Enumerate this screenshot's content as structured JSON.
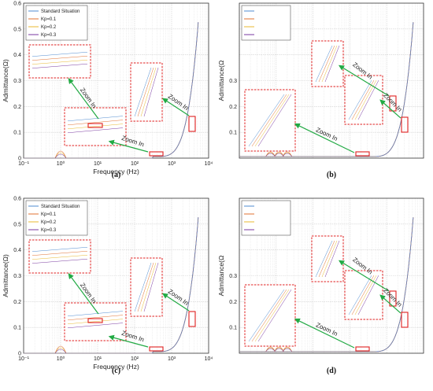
{
  "colors": {
    "series": [
      "#4f8bd0",
      "#e07030",
      "#e8b830",
      "#7a3aa0"
    ],
    "zoom_box": "#e02020",
    "arrow": "#22aa44",
    "grid": "#cfcfcf"
  },
  "chart_data": [
    {
      "type": "line",
      "panel_label": "(a)",
      "xlabel": "Frequency (Hz)",
      "ylabel": "Admittance(Ω)",
      "xscale": "log",
      "xlim": [
        0.1,
        10000
      ],
      "ylim": [
        0,
        0.6
      ],
      "xtick_labels": [
        "10⁻¹",
        "10⁰",
        "10¹",
        "10²",
        "10³",
        "10⁴"
      ],
      "ytick_labels": [
        "0",
        "0.1",
        "0.2",
        "0.3",
        "0.4",
        "0.5",
        "0.6"
      ],
      "legend": [
        "Standard Situation",
        "Kp=0.1",
        "Kp=0.2",
        "Kp=0.3"
      ],
      "legend_placement": "top-left",
      "grid": true,
      "annotations": [
        "Zoom In",
        "Zoom In",
        "Zoom In"
      ]
    },
    {
      "type": "line",
      "panel_label": "(b)",
      "xlabel": "",
      "ylabel": "Admittance(Ω",
      "xscale": "log",
      "ylim": [
        0,
        0.6
      ],
      "ytick_labels": [
        "0.1",
        "0.2",
        "0.3"
      ],
      "legend": [
        "",
        "",
        "",
        ""
      ],
      "legend_placement": "top-left",
      "grid": true,
      "annotations": [
        "Zoom In",
        "Zoom In",
        "Zoom In"
      ]
    },
    {
      "type": "line",
      "panel_label": "(c)",
      "xlabel": "Frequency (Hz)",
      "ylabel": "Admittance(Ω)",
      "xscale": "log",
      "xlim": [
        0.1,
        10000
      ],
      "ylim": [
        0,
        0.6
      ],
      "xtick_labels": [
        "10⁻¹",
        "10⁰",
        "10¹",
        "10²",
        "10³",
        "10⁴"
      ],
      "ytick_labels": [
        "0",
        "0.1",
        "0.2",
        "0.3",
        "0.4",
        "0.5",
        "0.6"
      ],
      "legend": [
        "Standard Situation",
        "Kp=0.1",
        "Kp=0.2",
        "Kp=0.3"
      ],
      "legend_placement": "top-left",
      "grid": true,
      "annotations": [
        "Zoom In",
        "Zoom In",
        "Zoom In"
      ]
    },
    {
      "type": "line",
      "panel_label": "(d)",
      "xlabel": "",
      "ylabel": "Admittance(Ω",
      "xscale": "log",
      "ylim": [
        0,
        0.6
      ],
      "ytick_labels": [
        "0.1",
        "0.2",
        "0.3"
      ],
      "legend": [
        "",
        "",
        "",
        ""
      ],
      "legend_placement": "top-left",
      "grid": true,
      "annotations": [
        "Zoom In",
        "Zoom In",
        "Zoom In"
      ]
    }
  ]
}
